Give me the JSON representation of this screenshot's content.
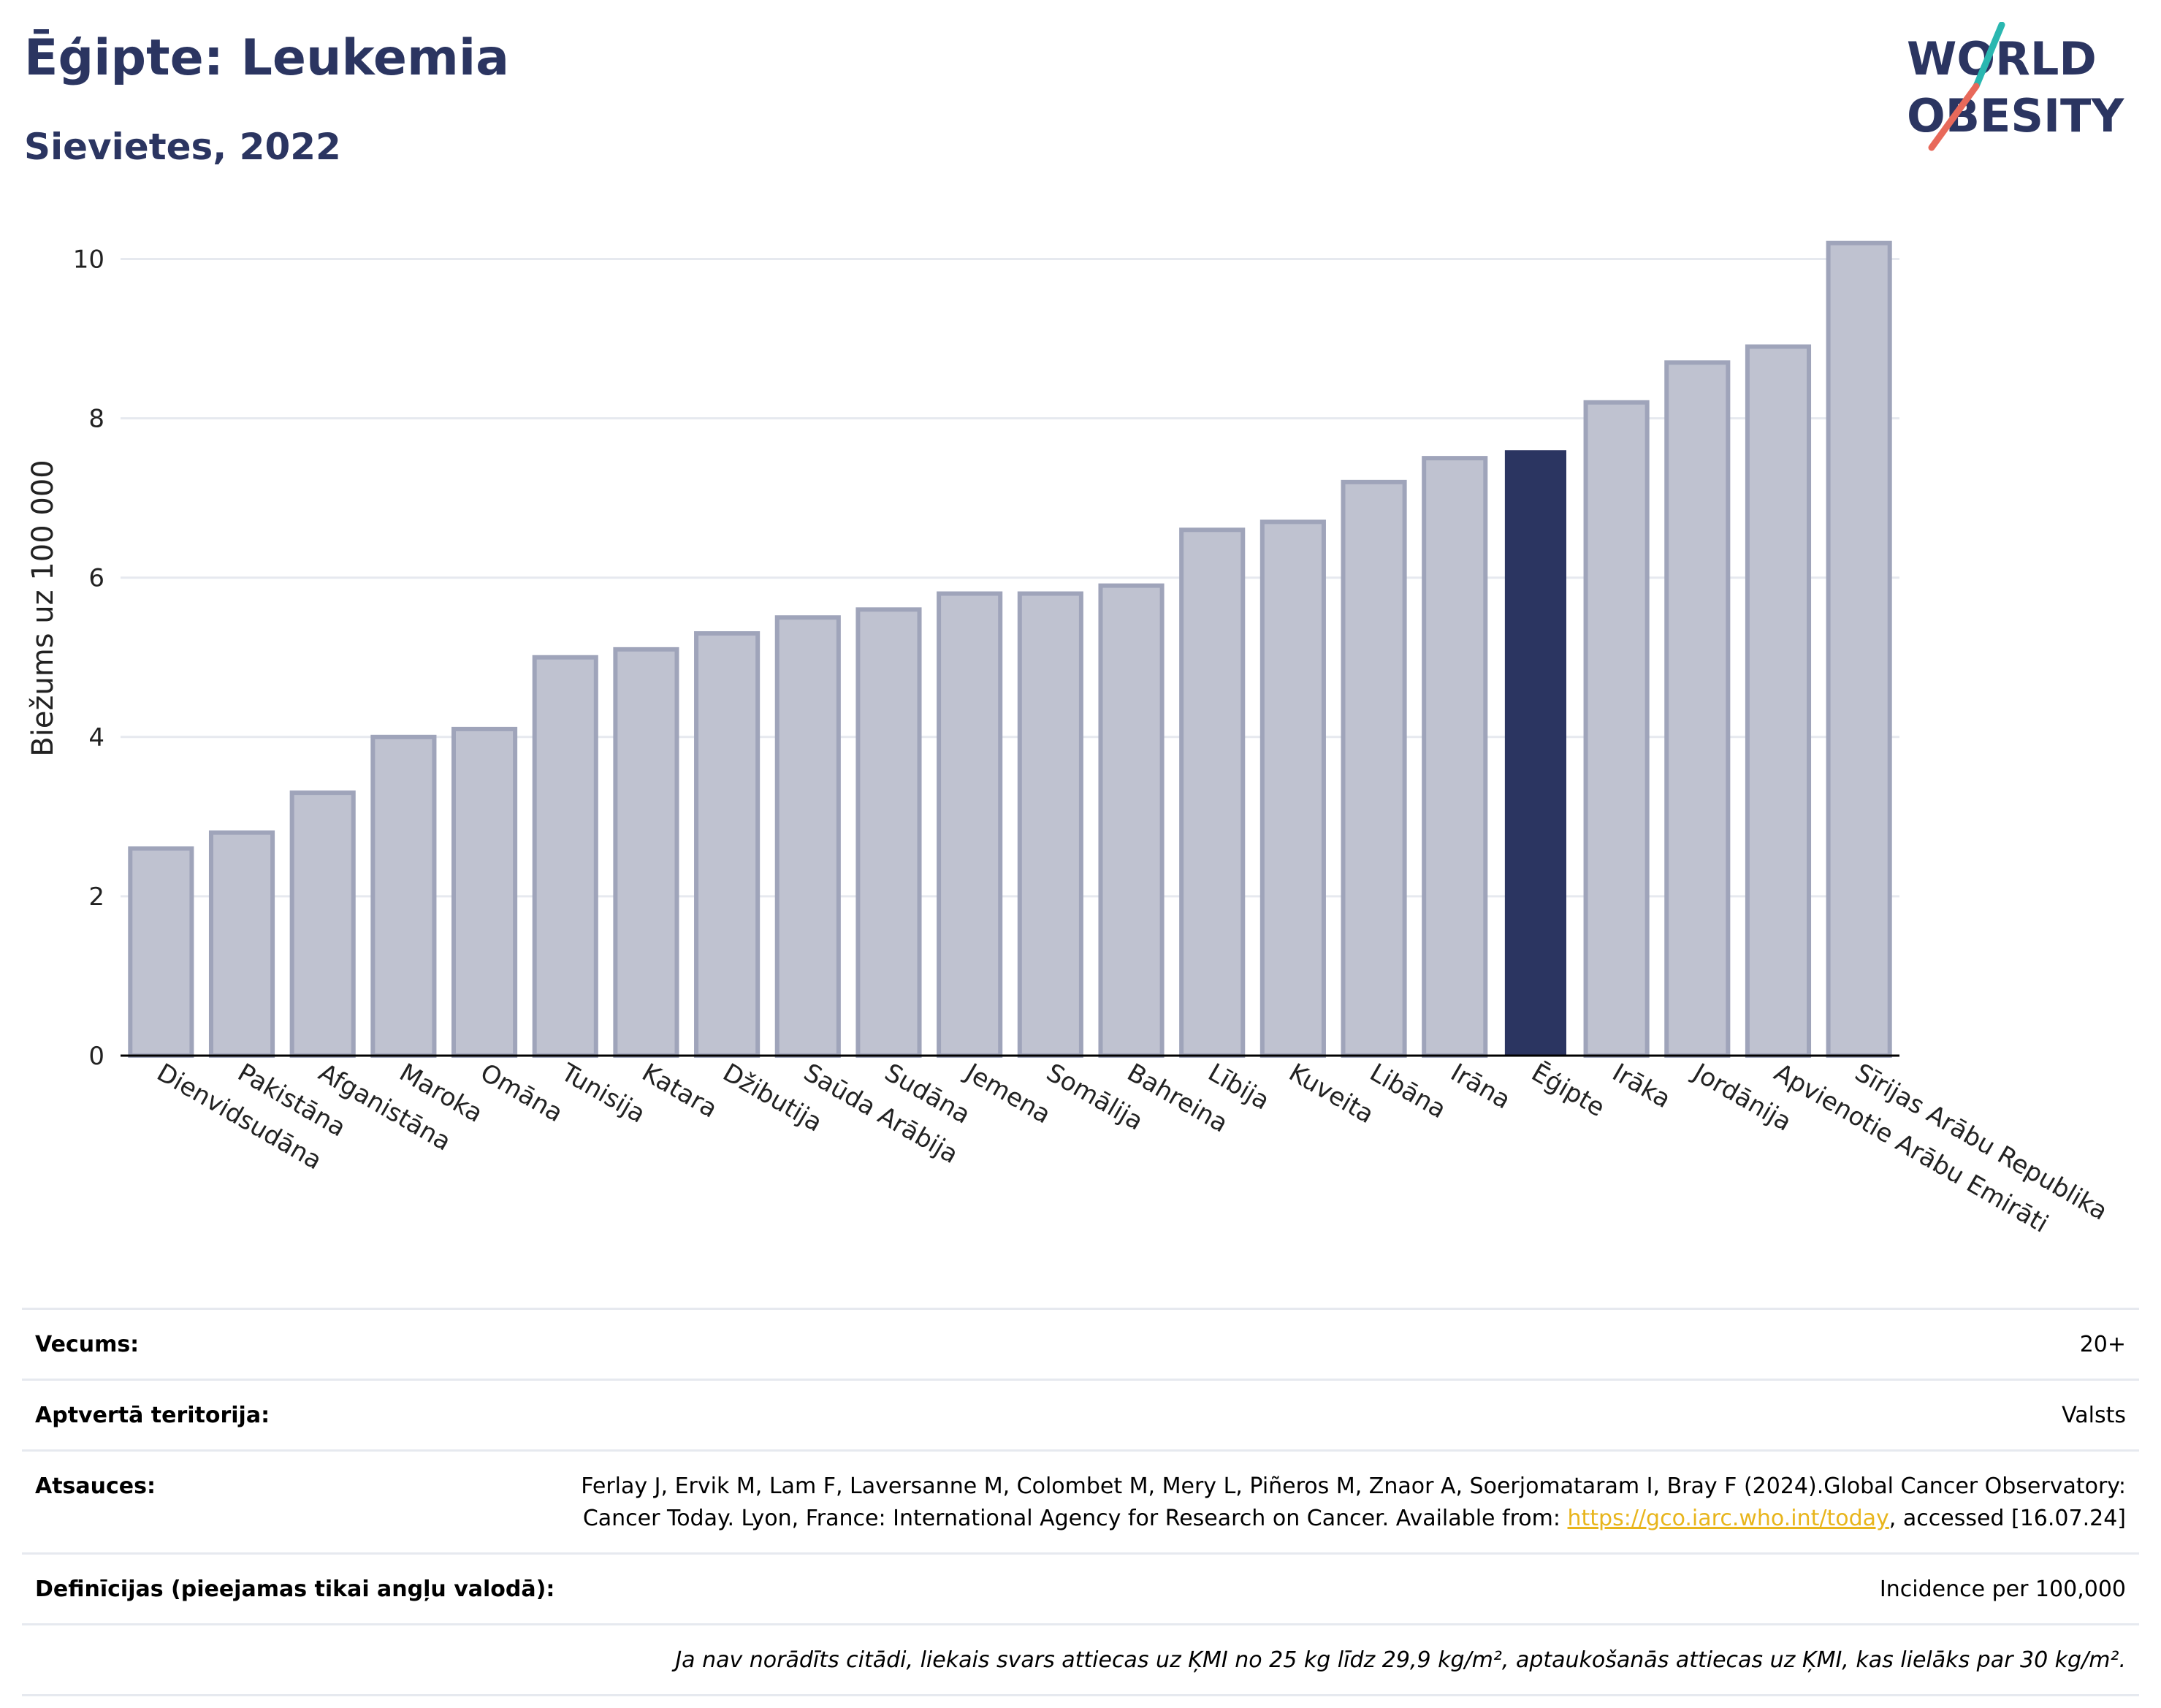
{
  "header": {
    "title": "Ēģipte: Leukemia",
    "subtitle": "Sievietes, 2022"
  },
  "logo": {
    "line1": "WORLD",
    "line2": "OBESITY",
    "colors": {
      "text": "#2b3561",
      "slash_teal": "#2ab7b0",
      "slash_coral": "#e8695a"
    }
  },
  "colors": {
    "bar": "#bfc2d0",
    "bar_stroke": "#9fa4ba",
    "highlight": "#2b3561",
    "grid": "#e6e9ef",
    "axis": "#000000"
  },
  "chart_data": {
    "type": "bar",
    "categories": [
      "Dienvidsudāna",
      "Pakistāna",
      "Afganistāna",
      "Maroka",
      "Omāna",
      "Tunisija",
      "Katara",
      "Džibutija",
      "Saūda Arābija",
      "Sudāna",
      "Jemena",
      "Somālija",
      "Bahreina",
      "Lībija",
      "Kuveita",
      "Libāna",
      "Irāna",
      "Ēģipte",
      "Irāka",
      "Jordānija",
      "Apvienotie Arābu Emirāti",
      "Sīrijas Arābu Republika"
    ],
    "values": [
      2.6,
      2.8,
      3.3,
      4.0,
      4.1,
      5.0,
      5.1,
      5.3,
      5.5,
      5.6,
      5.8,
      5.8,
      5.9,
      6.6,
      6.7,
      7.2,
      7.5,
      7.6,
      8.2,
      8.7,
      8.9,
      10.2
    ],
    "highlight": "Ēģipte",
    "ylabel": "Biežums uz 100 000",
    "ylim": [
      0,
      10.5
    ],
    "yticks": [
      0,
      2,
      4,
      6,
      8,
      10
    ],
    "grid": true
  },
  "info": {
    "age_label": "Vecums:",
    "age_value": "20+",
    "coverage_label": "Aptvertā teritorija:",
    "coverage_value": "Valsts",
    "refs_label": "Atsauces:",
    "refs_text": "Ferlay J, Ervik M, Lam F, Laversanne M, Colombet M, Mery L, Piñeros M, Znaor A, Soerjomataram I, Bray F (2024).Global Cancer Observatory: Cancer Today. Lyon, France: International Agency for Research on Cancer. Available from:",
    "refs_link": "https://gco.iarc.who.int/today",
    "refs_tail": ", accessed [16.07.24]",
    "defs_label": "Definīcijas (pieejamas tikai angļu valodā):",
    "defs_value": "Incidence per 100,000",
    "note": "Ja nav norādīts citādi, liekais svars attiecas uz ĶMI no 25 kg līdz 29,9 kg/m², aptaukošanās attiecas uz ĶMI, kas lielāks par 30 kg/m²."
  }
}
